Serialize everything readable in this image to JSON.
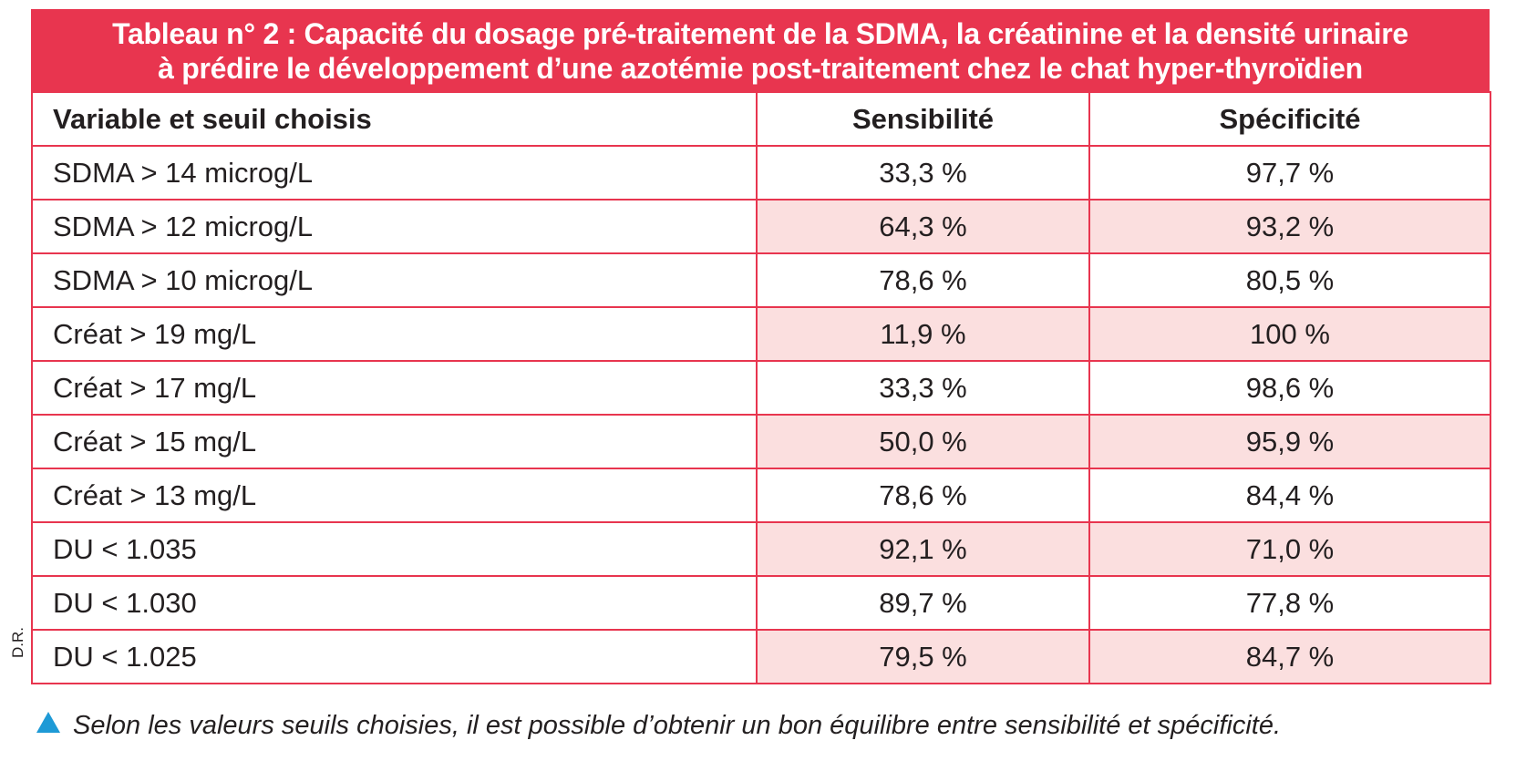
{
  "table": {
    "title_line1": "Tableau n° 2 : Capacité du dosage pré-traitement de la SDMA, la créatinine et la densité urinaire",
    "title_line2": "à prédire le développement d’une azotémie post-traitement chez le chat hyper-thyroïdien",
    "headers": [
      "Variable et seuil choisis",
      "Sensibilité",
      "Spécificité"
    ],
    "rows": [
      [
        "SDMA > 14 microg/L",
        "33,3 %",
        "97,7 %"
      ],
      [
        "SDMA > 12 microg/L",
        "64,3 %",
        "93,2 %"
      ],
      [
        "SDMA > 10 microg/L",
        "78,6 %",
        "80,5 %"
      ],
      [
        "Créat > 19 mg/L",
        "11,9 %",
        "100 %"
      ],
      [
        "Créat > 17 mg/L",
        "33,3 %",
        "98,6 %"
      ],
      [
        "Créat > 15 mg/L",
        "50,0 %",
        "95,9 %"
      ],
      [
        "Créat > 13 mg/L",
        "78,6 %",
        "84,4 %"
      ],
      [
        "DU < 1.035",
        "92,1 %",
        "71,0 %"
      ],
      [
        "DU < 1.030",
        "89,7 %",
        "77,8 %"
      ],
      [
        "DU < 1.025",
        "79,5 %",
        "84,7 %"
      ]
    ]
  },
  "credit": "D.R.",
  "caption": {
    "icon": "triangle-up-icon",
    "text": "Selon les valeurs seuils choisies, il est possible d’obtenir un bon équilibre entre sensibilité et spécificité."
  },
  "colors": {
    "accent": "#e8354f",
    "shade": "#fbdfdf",
    "icon": "#1e9ad6"
  }
}
